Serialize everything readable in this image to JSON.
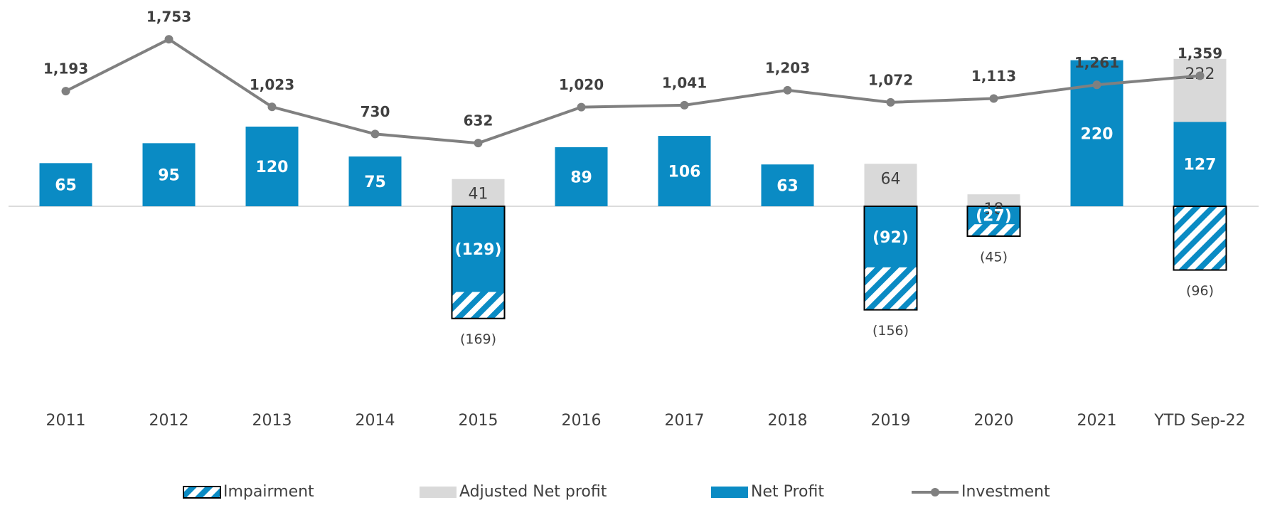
{
  "chart_data": {
    "type": "bar",
    "categories": [
      "2011",
      "2012",
      "2013",
      "2014",
      "2015",
      "2016",
      "2017",
      "2018",
      "2019",
      "2020",
      "2021",
      "YTD Sep-22"
    ],
    "ylim": [
      -300,
      300
    ],
    "y2lim": [
      -2200,
      2100
    ],
    "legend": "bottom",
    "series": [
      {
        "name": "Impairment",
        "type": "bar",
        "pattern": "hatch",
        "color": "#0a8bc4",
        "values": [
          null,
          null,
          null,
          null,
          -169,
          null,
          null,
          null,
          -156,
          -45,
          null,
          -96
        ],
        "value_labels": [
          null,
          null,
          null,
          null,
          "(169)",
          null,
          null,
          null,
          "(156)",
          "(45)",
          null,
          "(96)"
        ]
      },
      {
        "name": "Adjusted Net profit",
        "type": "bar",
        "color": "#d9d9d9",
        "values": [
          null,
          null,
          null,
          null,
          41,
          null,
          null,
          null,
          64,
          18,
          null,
          222
        ]
      },
      {
        "name": "Net Profit",
        "type": "bar",
        "color": "#0a8bc4",
        "values": [
          65,
          95,
          120,
          75,
          -129,
          89,
          106,
          63,
          -92,
          -27,
          220,
          127
        ],
        "value_labels": [
          "65",
          "95",
          "120",
          "75",
          "(129)",
          "89",
          "106",
          "63",
          "(92)",
          "(27)",
          "220",
          "127"
        ]
      },
      {
        "name": "Investment",
        "type": "line",
        "axis": "y2",
        "color": "#808080",
        "values": [
          1193,
          1753,
          1023,
          730,
          632,
          1020,
          1041,
          1203,
          1072,
          1113,
          1261,
          1359
        ],
        "value_labels": [
          "1,193",
          "1,753",
          "1,023",
          "730",
          "632",
          "1,020",
          "1,041",
          "1,203",
          "1,072",
          "1,113",
          "1,261",
          "1,359"
        ]
      }
    ]
  }
}
